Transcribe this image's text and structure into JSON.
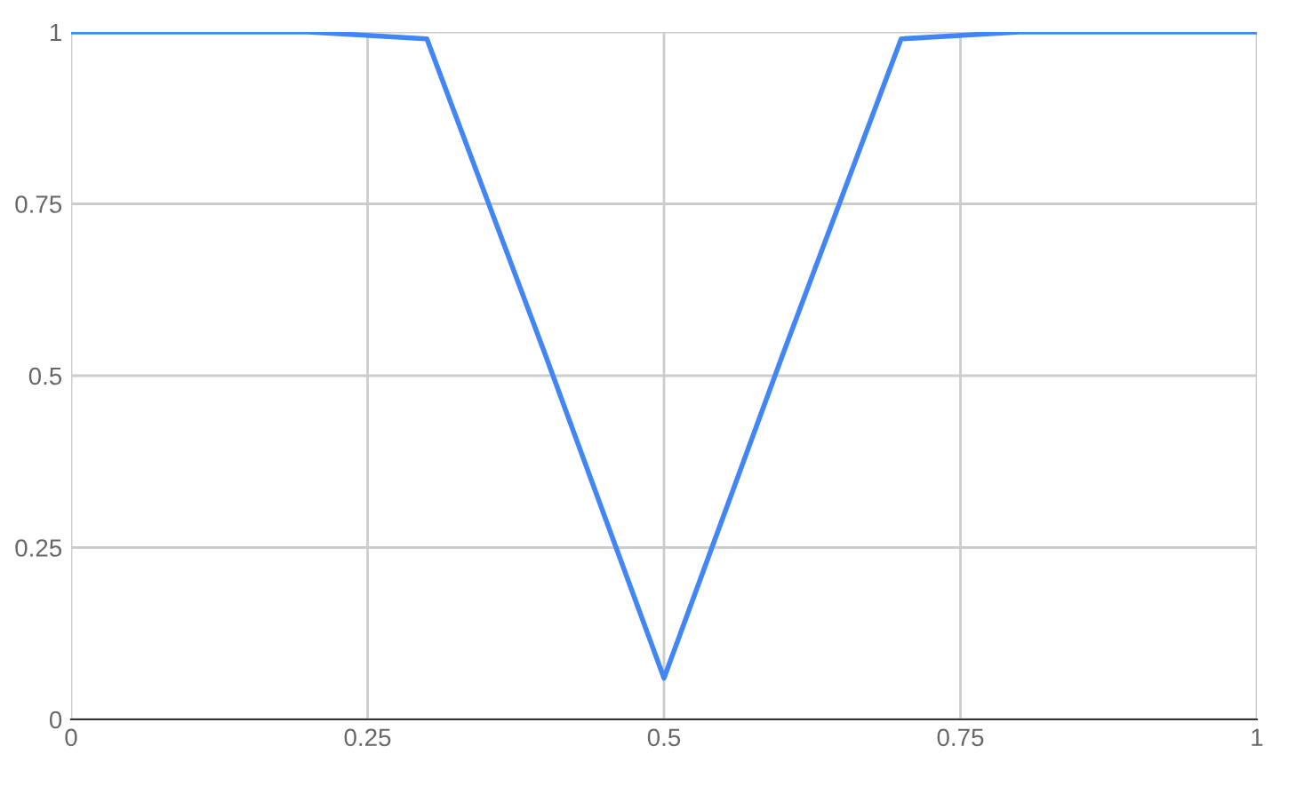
{
  "chart_data": {
    "type": "line",
    "x": [
      0,
      0.1,
      0.2,
      0.3,
      0.4,
      0.5,
      0.6,
      0.7,
      0.8,
      0.9,
      1
    ],
    "series": [
      {
        "color": "#4285f4",
        "values": [
          1,
          1,
          1,
          0.99,
          0.53,
          0.06,
          0.53,
          0.99,
          1,
          1,
          1
        ]
      }
    ],
    "xlim": [
      0,
      1
    ],
    "ylim": [
      0,
      1
    ],
    "xticks": [
      0,
      0.25,
      0.5,
      0.75,
      1
    ],
    "yticks": [
      0,
      0.25,
      0.5,
      0.75,
      1
    ],
    "grid": true,
    "legend": false,
    "marker": "none",
    "line_style": "solid"
  }
}
